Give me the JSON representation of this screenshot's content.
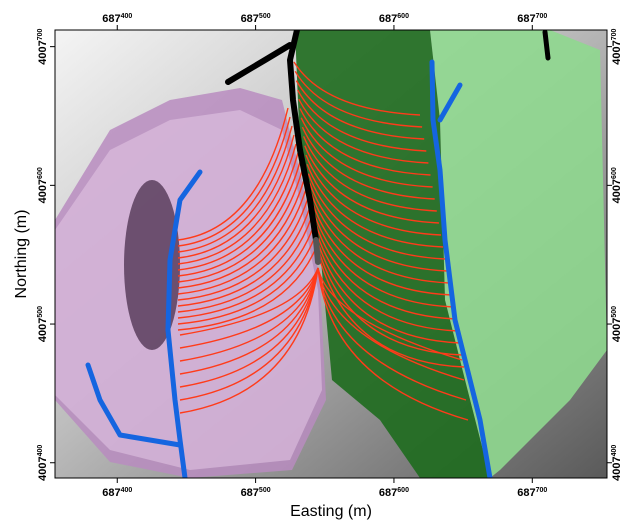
{
  "chart_data": {
    "type": "map",
    "xlabel": "Easting (m)",
    "ylabel": "Northing (m)",
    "xlim": [
      687355,
      687754
    ],
    "ylim": [
      4007389,
      4007712
    ],
    "xticks": [
      {
        "value": 687400,
        "label": "687400"
      },
      {
        "value": 687500,
        "label": "687500"
      },
      {
        "value": 687600,
        "label": "687600"
      },
      {
        "value": 687700,
        "label": "687700"
      }
    ],
    "yticks": [
      {
        "value": 4007400,
        "label": "4007400"
      },
      {
        "value": 4007500,
        "label": "4007500"
      },
      {
        "value": 4007600,
        "label": "4007600"
      },
      {
        "value": 4007700,
        "label": "4007700"
      }
    ]
  }
}
